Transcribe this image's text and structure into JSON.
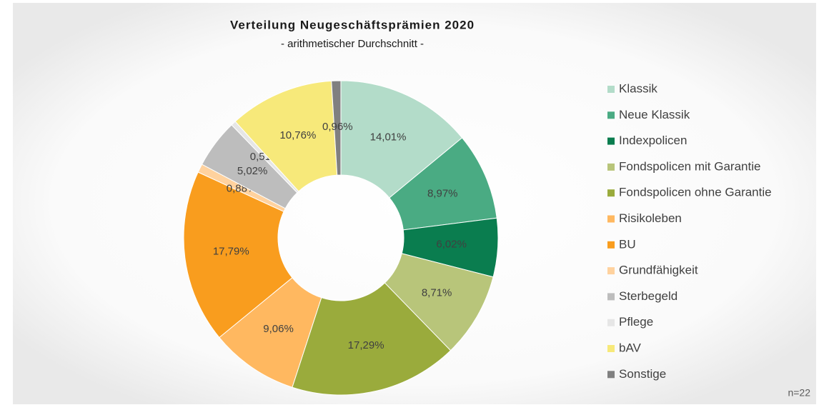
{
  "chart_data": {
    "type": "donut",
    "title": "Verteilung Neugeschäftsprämien 2020",
    "subtitle": "- arithmetischer Durchschnitt -",
    "annotation": "n=22",
    "categories": [
      "Klassik",
      "Neue Klassik",
      "Indexpolicen",
      "Fondspolicen mit Garantie",
      "Fondspolicen ohne Garantie",
      "Risikoleben",
      "BU",
      "Grundfähigkeit",
      "Sterbegeld",
      "Pflege",
      "bAV",
      "Sonstige"
    ],
    "values": [
      14.01,
      8.97,
      6.02,
      8.71,
      17.29,
      9.06,
      17.79,
      0.88,
      5.02,
      0.51,
      10.76,
      0.96
    ],
    "value_labels": [
      "14,01%",
      "8,97%",
      "6,02%",
      "8,71%",
      "17,29%",
      "9,06%",
      "17,79%",
      "0,88%",
      "5,02%",
      "0,51%",
      "10,76%",
      "0,96%"
    ],
    "colors": [
      "#b3dcc9",
      "#4aab83",
      "#0a7d4f",
      "#b8c57a",
      "#9aab3c",
      "#ffb860",
      "#f99d1e",
      "#ffd29e",
      "#bdbdbd",
      "#e6e6e6",
      "#f7e97a",
      "#808080"
    ],
    "legend": "right"
  }
}
